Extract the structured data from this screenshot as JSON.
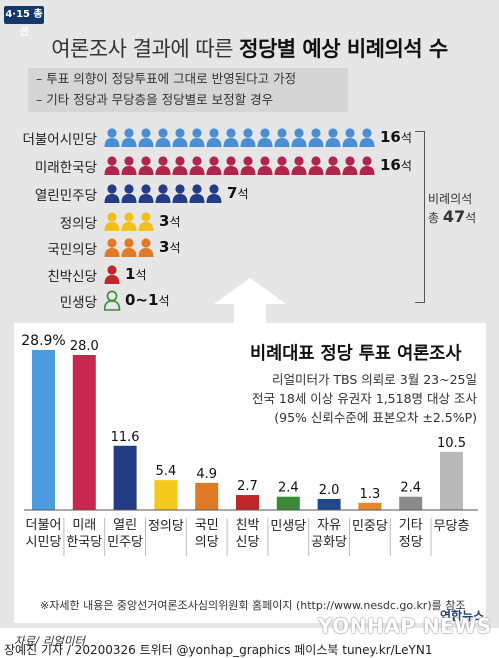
{
  "header": {
    "badge": "4·15 총선",
    "title_prefix": "여론조사 결과에 따른 ",
    "title_bold": "정당별 예상 비례의석 수"
  },
  "assumptions": [
    "– 투표 의향이 정당투표에 그대로 반영된다고 가정",
    "– 기타 정당과 무당층을 정당별로 보정할 경우"
  ],
  "seats": [
    {
      "party": "더불어시민당",
      "count": 16,
      "label": "16",
      "unit": "석",
      "color": "#4a8fd6"
    },
    {
      "party": "미래한국당",
      "count": 16,
      "label": "16",
      "unit": "석",
      "color": "#b3244c"
    },
    {
      "party": "열린민주당",
      "count": 7,
      "label": "7",
      "unit": "석",
      "color": "#223c86"
    },
    {
      "party": "정의당",
      "count": 3,
      "label": "3",
      "unit": "석",
      "color": "#f2c01d"
    },
    {
      "party": "국민의당",
      "count": 3,
      "label": "3",
      "unit": "석",
      "color": "#e07a26"
    },
    {
      "party": "친박신당",
      "count": 1,
      "label": "1",
      "unit": "석",
      "color": "#c0272d"
    },
    {
      "party": "민생당",
      "count": 0,
      "label": "0~1",
      "unit": "석",
      "color": "#3a8a3a",
      "outline": true
    }
  ],
  "total": {
    "line1": "비례의석",
    "line2_prefix": "총 ",
    "value": "47",
    "unit": "석"
  },
  "survey": {
    "title": "비례대표 정당 투표 여론조사",
    "line1": "리얼미터가 TBS 의뢰로 3월 23~25일",
    "line2": "전국 18세 이상 유권자 1,518명 대상 조사",
    "line3": "(95% 신뢰수준에 표본오차 ±2.5%P)"
  },
  "chart_data": {
    "type": "bar",
    "categories": [
      "더불어\n시민당",
      "미래\n한국당",
      "열린\n민주당",
      "정의당",
      "국민\n의당",
      "친박\n신당",
      "민생당",
      "자유\n공화당",
      "민중당",
      "기타\n정당",
      "무당층"
    ],
    "values": [
      28.9,
      28.0,
      11.6,
      5.4,
      4.9,
      2.7,
      2.4,
      2.0,
      1.3,
      2.4,
      10.5
    ],
    "value_labels": [
      "28.9%",
      "28.0",
      "11.6",
      "5.4",
      "4.9",
      "2.7",
      "2.4",
      "2.0",
      "1.3",
      "2.4",
      "10.5"
    ],
    "colors": [
      "#4a9be0",
      "#c8284f",
      "#223c86",
      "#f7c81c",
      "#e07a26",
      "#c0272d",
      "#3a8a3a",
      "#1e4a8c",
      "#e8842a",
      "#8a8a8a",
      "#b9b9b9"
    ],
    "title": "비례대표 정당 투표 여론조사"
  },
  "footnote": "※자세한 내용은 중앙선거여론조사심의위원회 홈페이지 (http://www.nesdc.go.kr)를 참조",
  "source": "자료/ 리얼미터",
  "credits": "장예진 기자 / 20200326 트위터 @yonhap_graphics  페이스북 tuney.kr/LeYN1",
  "logo": "연합뉴스",
  "watermark": "YONHAP NEWS"
}
